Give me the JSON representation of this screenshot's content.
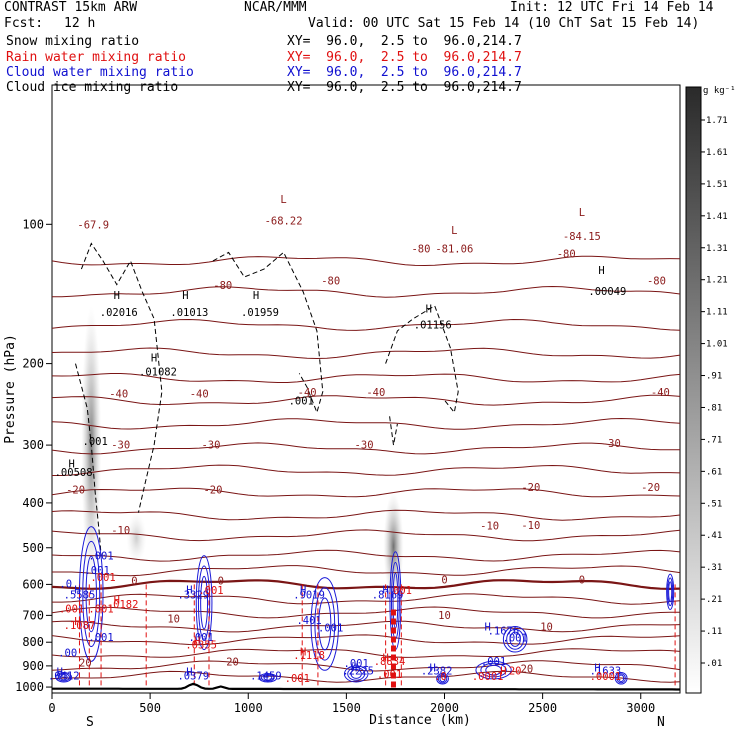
{
  "header": {
    "model": "CONTRAST 15km ARW",
    "center": "NCAR/MMM",
    "init": "Init: 12 UTC Fri 14 Feb 14",
    "fcst_label": "Fcst:",
    "fcst_value": "12 h",
    "valid": "Valid: 00 UTC Sat 15 Feb 14 (10 ChT Sat 15 Feb 14)",
    "fields": [
      {
        "name": "Snow mixing ratio",
        "xy": "XY=  96.0,  2.5 to  96.0,214.7",
        "color": "#000000"
      },
      {
        "name": "Rain water mixing ratio",
        "xy": "XY=  96.0,  2.5 to  96.0,214.7",
        "color": "#e01010"
      },
      {
        "name": "Cloud water mixing ratio",
        "xy": "XY=  96.0,  2.5 to  96.0,214.7",
        "color": "#1010d0"
      },
      {
        "name": "Cloud ice mixing ratio",
        "xy": "XY=  96.0,  2.5 to  96.0,214.7",
        "color": "#000000"
      }
    ]
  },
  "chart_data": {
    "type": "heatmap",
    "xlabel": "Distance (km)",
    "ylabel": "Pressure (hPa)",
    "xlim": [
      0,
      3200
    ],
    "ylim": [
      1030,
      50
    ],
    "xticks": [
      0,
      500,
      1000,
      1500,
      2000,
      2500,
      3000
    ],
    "yticks": [
      100,
      200,
      300,
      400,
      500,
      600,
      700,
      800,
      900,
      1000
    ],
    "end_labels": {
      "left": "S",
      "right": "N"
    },
    "colorbar": {
      "unit": "g kg⁻¹",
      "levels": [
        "1.71",
        "1.61",
        "1.51",
        "1.41",
        "1.31",
        "1.21",
        "1.11",
        "1.01",
        ".91",
        ".81",
        ".71",
        ".61",
        ".51",
        ".41",
        ".31",
        ".21",
        ".11",
        ".01"
      ]
    },
    "temperature_labels": [
      {
        "x": 210,
        "p": 102,
        "text": "-67.9",
        "color": "#8b1a1a"
      },
      {
        "x": 1180,
        "p": 90,
        "text": "L",
        "color": "#8b1a1a"
      },
      {
        "x": 1180,
        "p": 100,
        "text": "-68.22",
        "color": "#8b1a1a"
      },
      {
        "x": 2050,
        "p": 105,
        "text": "L",
        "color": "#8b1a1a"
      },
      {
        "x": 2050,
        "p": 115,
        "text": "-81.06",
        "color": "#8b1a1a"
      },
      {
        "x": 2700,
        "p": 96,
        "text": "L",
        "color": "#8b1a1a"
      },
      {
        "x": 2700,
        "p": 108,
        "text": "-84.15",
        "color": "#8b1a1a"
      },
      {
        "x": 1420,
        "p": 135,
        "text": "-80",
        "color": "#8b1a1a"
      },
      {
        "x": 1880,
        "p": 115,
        "text": "-80",
        "color": "#8b1a1a"
      },
      {
        "x": 870,
        "p": 138,
        "text": "-80",
        "color": "#8b1a1a"
      },
      {
        "x": 3080,
        "p": 135,
        "text": "-80",
        "color": "#8b1a1a"
      },
      {
        "x": 2620,
        "p": 118,
        "text": "-80",
        "color": "#8b1a1a"
      },
      {
        "x": 340,
        "p": 237,
        "text": "-40",
        "color": "#8b1a1a"
      },
      {
        "x": 750,
        "p": 237,
        "text": "-40",
        "color": "#8b1a1a"
      },
      {
        "x": 1300,
        "p": 235,
        "text": "-40",
        "color": "#8b1a1a"
      },
      {
        "x": 1650,
        "p": 235,
        "text": "-40",
        "color": "#8b1a1a"
      },
      {
        "x": 3100,
        "p": 235,
        "text": "-40",
        "color": "#8b1a1a"
      },
      {
        "x": 350,
        "p": 305,
        "text": "-30",
        "color": "#8b1a1a"
      },
      {
        "x": 810,
        "p": 305,
        "text": "-30",
        "color": "#8b1a1a"
      },
      {
        "x": 1590,
        "p": 305,
        "text": "-30",
        "color": "#8b1a1a"
      },
      {
        "x": 2850,
        "p": 303,
        "text": "-30",
        "color": "#8b1a1a"
      },
      {
        "x": 120,
        "p": 382,
        "text": "-20",
        "color": "#8b1a1a"
      },
      {
        "x": 820,
        "p": 382,
        "text": "-20",
        "color": "#8b1a1a"
      },
      {
        "x": 2440,
        "p": 377,
        "text": "-20",
        "color": "#8b1a1a"
      },
      {
        "x": 3050,
        "p": 377,
        "text": "-20",
        "color": "#8b1a1a"
      },
      {
        "x": 350,
        "p": 467,
        "text": "-10",
        "color": "#8b1a1a"
      },
      {
        "x": 2230,
        "p": 457,
        "text": "-10",
        "color": "#8b1a1a"
      },
      {
        "x": 2440,
        "p": 455,
        "text": "-10",
        "color": "#8b1a1a"
      },
      {
        "x": 420,
        "p": 600,
        "text": "0",
        "color": "#8b1a1a"
      },
      {
        "x": 860,
        "p": 601,
        "text": "0",
        "color": "#8b1a1a"
      },
      {
        "x": 2000,
        "p": 597,
        "text": "0",
        "color": "#8b1a1a"
      },
      {
        "x": 2700,
        "p": 597,
        "text": "0",
        "color": "#8b1a1a"
      },
      {
        "x": 620,
        "p": 725,
        "text": "10",
        "color": "#8b1a1a"
      },
      {
        "x": 2000,
        "p": 712,
        "text": "10",
        "color": "#8b1a1a"
      },
      {
        "x": 2520,
        "p": 755,
        "text": "10",
        "color": "#8b1a1a"
      },
      {
        "x": 170,
        "p": 902,
        "text": "20",
        "color": "#8b1a1a"
      },
      {
        "x": 920,
        "p": 898,
        "text": "20",
        "color": "#8b1a1a"
      },
      {
        "x": 2420,
        "p": 930,
        "text": "20",
        "color": "#8b1a1a"
      }
    ],
    "snow_ice_labels": [
      {
        "x": 330,
        "p": 145,
        "text": "H",
        "color": "#000000"
      },
      {
        "x": 340,
        "p": 158,
        "text": ".02016",
        "color": "#000000"
      },
      {
        "x": 680,
        "p": 145,
        "text": "H",
        "color": "#000000"
      },
      {
        "x": 700,
        "p": 158,
        "text": ".01013",
        "color": "#000000"
      },
      {
        "x": 1040,
        "p": 145,
        "text": "H",
        "color": "#000000"
      },
      {
        "x": 1060,
        "p": 158,
        "text": ".01959",
        "color": "#000000"
      },
      {
        "x": 1920,
        "p": 155,
        "text": "H",
        "color": "#000000"
      },
      {
        "x": 1940,
        "p": 168,
        "text": ".01156",
        "color": "#000000"
      },
      {
        "x": 2800,
        "p": 128,
        "text": "H",
        "color": "#000000"
      },
      {
        "x": 2830,
        "p": 142,
        "text": ".00049",
        "color": "#000000"
      },
      {
        "x": 520,
        "p": 198,
        "text": "H",
        "color": "#000000"
      },
      {
        "x": 540,
        "p": 212,
        "text": ".01082",
        "color": "#000000"
      },
      {
        "x": 220,
        "p": 300,
        "text": ".001",
        "color": "#000000"
      },
      {
        "x": 100,
        "p": 335,
        "text": "H",
        "color": "#000000"
      },
      {
        "x": 110,
        "p": 350,
        "text": ".00508",
        "color": "#000000"
      },
      {
        "x": 1270,
        "p": 245,
        "text": ".001",
        "color": "#000000"
      }
    ],
    "cloud_water_labels": [
      {
        "x": 250,
        "p": 530,
        "text": ".001",
        "color": "#1010d0"
      },
      {
        "x": 230,
        "p": 570,
        "text": ".001",
        "color": "#1010d0"
      },
      {
        "x": 70,
        "p": 610,
        "text": ".0",
        "color": "#1010d0"
      },
      {
        "x": 130,
        "p": 628,
        "text": "H",
        "color": "#1010d0"
      },
      {
        "x": 140,
        "p": 643,
        "text": ".5585",
        "color": "#1010d0"
      },
      {
        "x": 700,
        "p": 628,
        "text": "H",
        "color": "#1010d0"
      },
      {
        "x": 720,
        "p": 643,
        "text": ".3329",
        "color": "#1010d0"
      },
      {
        "x": 1280,
        "p": 628,
        "text": "H",
        "color": "#1010d0"
      },
      {
        "x": 1310,
        "p": 643,
        "text": ".9019",
        "color": "#1010d0"
      },
      {
        "x": 1700,
        "p": 628,
        "text": "H",
        "color": "#1010d0"
      },
      {
        "x": 1710,
        "p": 643,
        "text": ".8169",
        "color": "#1010d0"
      },
      {
        "x": 1310,
        "p": 730,
        "text": ".401",
        "color": "#1010d0"
      },
      {
        "x": 1420,
        "p": 758,
        "text": ".001",
        "color": "#1010d0"
      },
      {
        "x": 250,
        "p": 795,
        "text": ".001",
        "color": "#1010d0"
      },
      {
        "x": 760,
        "p": 795,
        "text": ".001",
        "color": "#1010d0"
      },
      {
        "x": 80,
        "p": 860,
        "text": ".00",
        "color": "#1010d0"
      },
      {
        "x": 2220,
        "p": 755,
        "text": "H",
        "color": "#1010d0"
      },
      {
        "x": 2300,
        "p": 770,
        "text": ".1676",
        "color": "#1010d0"
      },
      {
        "x": 2360,
        "p": 798,
        "text": ".001",
        "color": "#1010d0"
      },
      {
        "x": 40,
        "p": 945,
        "text": "H",
        "color": "#1010d0"
      },
      {
        "x": 60,
        "p": 962,
        "text": ".0412",
        "color": "#1010d0"
      },
      {
        "x": 700,
        "p": 945,
        "text": "H",
        "color": "#1010d0"
      },
      {
        "x": 720,
        "p": 962,
        "text": ".0379",
        "color": "#1010d0"
      },
      {
        "x": 1090,
        "p": 962,
        "text": ".1459",
        "color": "#1010d0"
      },
      {
        "x": 1550,
        "p": 905,
        "text": ".001",
        "color": "#1010d0"
      },
      {
        "x": 1540,
        "p": 925,
        "text": "H",
        "color": "#1010d0"
      },
      {
        "x": 1560,
        "p": 940,
        "text": ".2225",
        "color": "#1010d0"
      },
      {
        "x": 1940,
        "p": 925,
        "text": "H",
        "color": "#1010d0"
      },
      {
        "x": 1960,
        "p": 940,
        "text": ".2382",
        "color": "#1010d0"
      },
      {
        "x": 2250,
        "p": 895,
        "text": ".001",
        "color": "#1010d0"
      },
      {
        "x": 2780,
        "p": 925,
        "text": "H",
        "color": "#1010d0"
      },
      {
        "x": 2820,
        "p": 940,
        "text": ".1633",
        "color": "#1010d0"
      }
    ],
    "rain_labels": [
      {
        "x": 260,
        "p": 590,
        "text": ".001",
        "color": "#e01010"
      },
      {
        "x": 330,
        "p": 660,
        "text": "H",
        "color": "#e01010"
      },
      {
        "x": 360,
        "p": 675,
        "text": ".0182",
        "color": "#e01010"
      },
      {
        "x": 810,
        "p": 630,
        "text": ".001",
        "color": "#e01010"
      },
      {
        "x": 1770,
        "p": 630,
        "text": ".001",
        "color": "#e01010"
      },
      {
        "x": 100,
        "p": 690,
        "text": ".001",
        "color": "#e01010"
      },
      {
        "x": 250,
        "p": 690,
        "text": ".001",
        "color": "#e01010"
      },
      {
        "x": 130,
        "p": 735,
        "text": "H",
        "color": "#e01010"
      },
      {
        "x": 140,
        "p": 750,
        "text": ".1087",
        "color": "#e01010"
      },
      {
        "x": 740,
        "p": 810,
        "text": "H",
        "color": "#e01010"
      },
      {
        "x": 760,
        "p": 825,
        "text": ".0355",
        "color": "#e01010"
      },
      {
        "x": 1280,
        "p": 855,
        "text": "H",
        "color": "#e01010"
      },
      {
        "x": 1310,
        "p": 870,
        "text": ".1118",
        "color": "#e01010"
      },
      {
        "x": 1700,
        "p": 880,
        "text": "H",
        "color": "#e01010"
      },
      {
        "x": 1720,
        "p": 895,
        "text": ".8834",
        "color": "#e01010"
      },
      {
        "x": 1720,
        "p": 955,
        "text": ".001",
        "color": "#e01010"
      },
      {
        "x": 1980,
        "p": 965,
        "text": ".0",
        "color": "#e01010"
      },
      {
        "x": 2220,
        "p": 965,
        "text": ".0001",
        "color": "#e01010"
      },
      {
        "x": 2820,
        "p": 965,
        "text": ".0001",
        "color": "#e01010"
      },
      {
        "x": 1250,
        "p": 975,
        "text": ".001",
        "color": "#e01010"
      },
      {
        "x": 2300,
        "p": 940,
        "text": "H",
        "color": "#e01010"
      },
      {
        "x": 2360,
        "p": 940,
        "text": "20",
        "color": "#e01010"
      }
    ],
    "snow_columns": [
      {
        "x": 200,
        "p_top": 150,
        "p_bottom": 600,
        "intensity": 0.8
      },
      {
        "x": 430,
        "p_top": 420,
        "p_bottom": 540,
        "intensity": 0.3
      },
      {
        "x": 1740,
        "p_top": 380,
        "p_bottom": 650,
        "intensity": 0.85
      }
    ],
    "rain_columns": [
      {
        "x": 1740,
        "p_top": 680,
        "p_bottom": 1008
      }
    ],
    "temperature_levels": [
      "-80",
      "-40",
      "-30",
      "-20",
      "-10",
      "0",
      "10",
      "20"
    ]
  }
}
